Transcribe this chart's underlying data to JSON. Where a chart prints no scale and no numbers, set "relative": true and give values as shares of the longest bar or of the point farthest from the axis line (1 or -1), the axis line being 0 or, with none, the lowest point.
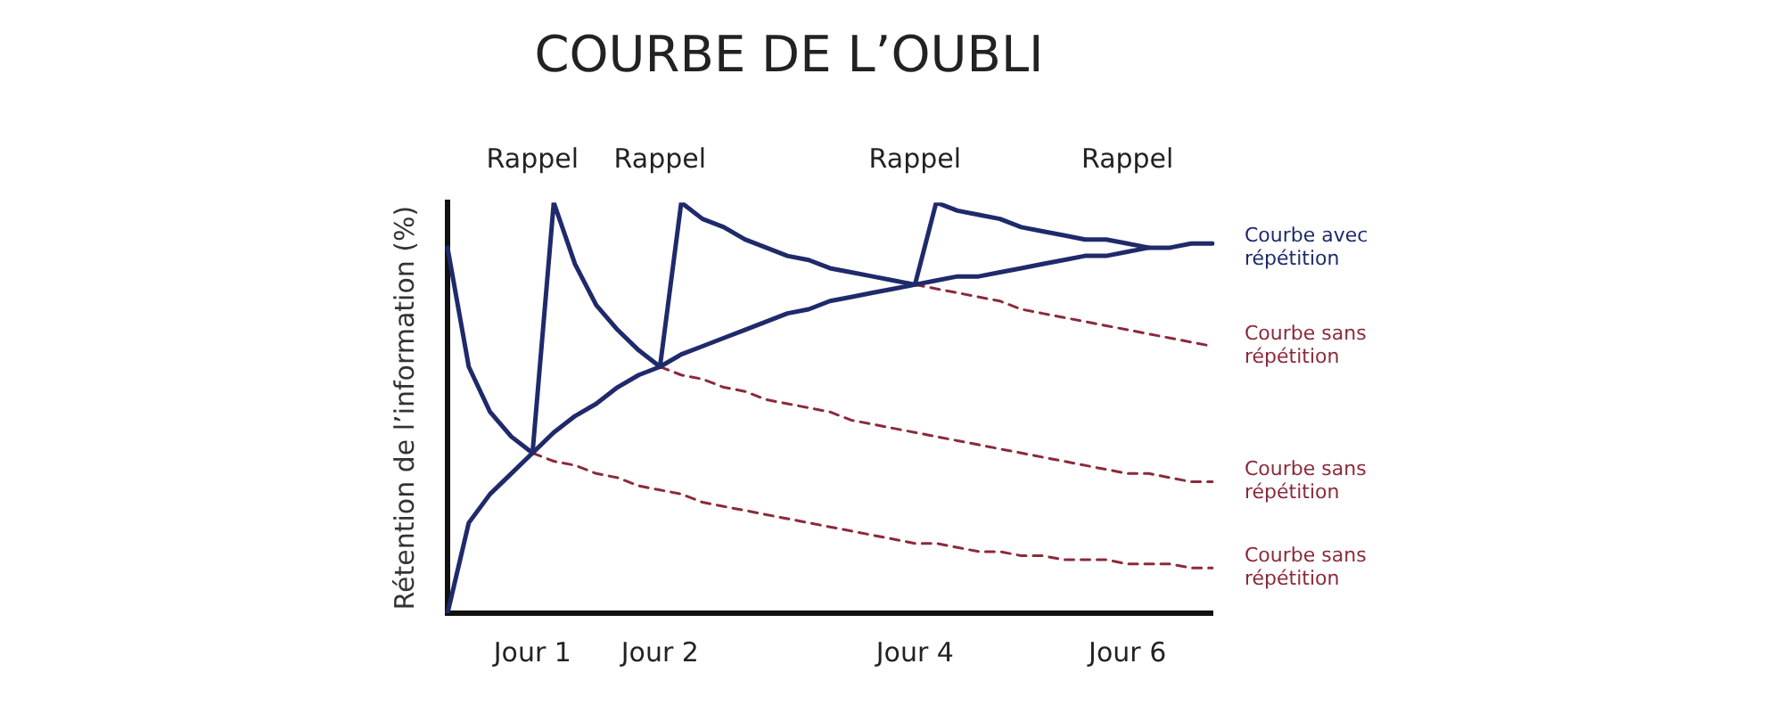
{
  "chart_data": {
    "type": "line",
    "title": "COURBE DE L’OUBLI",
    "ylabel": "Rétention de l’information (%)",
    "relative": true,
    "categories": [
      null,
      null,
      null,
      null,
      "Jour 1",
      null,
      null,
      null,
      null,
      null,
      "Jour 2",
      null,
      null,
      null,
      null,
      null,
      null,
      null,
      null,
      null,
      null,
      null,
      "Jour 4",
      null,
      null,
      null,
      null,
      null,
      null,
      null,
      null,
      null,
      "Jour 6",
      null,
      null,
      null,
      null
    ],
    "grid": false,
    "legend": false,
    "marker": "none",
    "line_style": "solid",
    "series": [
      {
        "name": "Courbe avec répétition",
        "color": "#1f2a6b",
        "values": [
          0.89,
          0.6,
          0.49,
          0.43,
          0.39,
          1.0,
          0.85,
          0.75,
          0.69,
          0.64,
          0.6,
          1.0,
          0.96,
          0.94,
          0.91,
          0.89,
          0.87,
          0.86,
          0.84,
          0.83,
          0.82,
          0.81,
          0.8,
          1.0,
          0.98,
          0.97,
          0.96,
          0.94,
          0.93,
          0.92,
          0.91,
          0.91,
          0.9,
          0.89,
          null,
          null,
          null
        ]
      },
      {
        "color": "#1f2a6b",
        "values": [
          0,
          0.22,
          0.29,
          0.34,
          0.39,
          0.44,
          0.48,
          0.51,
          0.55,
          0.58,
          0.6,
          0.63,
          0.65,
          0.67,
          0.69,
          0.71,
          0.73,
          0.74,
          0.76,
          0.77,
          0.78,
          0.79,
          0.8,
          0.81,
          0.82,
          0.82,
          0.83,
          0.84,
          0.85,
          0.86,
          0.87,
          0.87,
          0.88,
          0.89,
          0.89,
          0.9,
          0.9
        ]
      },
      {
        "name": "Courbe sans répétition",
        "color": "#8b2a3a",
        "line_style": "dashed",
        "values": [
          null,
          null,
          null,
          null,
          null,
          null,
          null,
          null,
          null,
          null,
          null,
          null,
          null,
          null,
          null,
          null,
          null,
          null,
          null,
          null,
          null,
          null,
          0.8,
          0.79,
          0.78,
          0.77,
          0.76,
          0.74,
          0.73,
          0.72,
          0.71,
          0.7,
          0.69,
          0.68,
          0.67,
          0.66,
          0.65
        ]
      },
      {
        "name": "Courbe sans répétition",
        "color": "#8b2a3a",
        "line_style": "dashed",
        "values": [
          null,
          null,
          null,
          null,
          null,
          null,
          null,
          null,
          null,
          null,
          0.6,
          0.58,
          0.57,
          0.55,
          0.54,
          0.52,
          0.51,
          0.5,
          0.49,
          0.47,
          0.46,
          0.45,
          0.44,
          0.43,
          0.42,
          0.41,
          0.4,
          0.39,
          0.38,
          0.37,
          0.36,
          0.35,
          0.34,
          0.34,
          0.33,
          0.32,
          0.32
        ]
      },
      {
        "name": "Courbe sans répétition",
        "color": "#8b2a3a",
        "line_style": "dashed",
        "values": [
          null,
          null,
          null,
          null,
          0.39,
          0.37,
          0.36,
          0.34,
          0.33,
          0.31,
          0.3,
          0.29,
          0.27,
          0.26,
          0.25,
          0.24,
          0.23,
          0.22,
          0.21,
          0.2,
          0.19,
          0.18,
          0.17,
          0.17,
          0.16,
          0.15,
          0.15,
          0.14,
          0.14,
          0.13,
          0.13,
          0.13,
          0.12,
          0.12,
          0.12,
          0.11,
          0.11
        ]
      }
    ],
    "annotations": [
      "Rappel",
      "Rappel",
      "Rappel",
      "Rappel"
    ]
  }
}
